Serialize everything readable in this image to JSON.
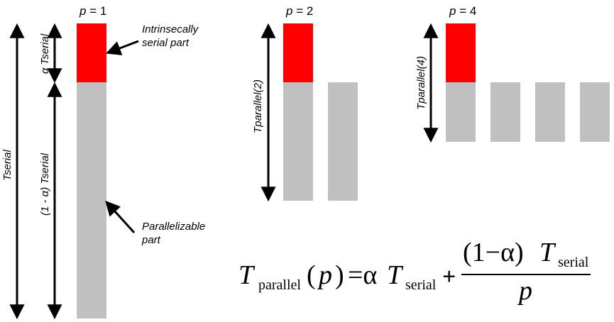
{
  "panels": {
    "p1": {
      "title_var": "p",
      "title_rest": " = 1"
    },
    "p2": {
      "title_var": "p",
      "title_rest": " = 2"
    },
    "p4": {
      "title_var": "p",
      "title_rest": " = 4"
    }
  },
  "labels": {
    "tserial": "Tserial",
    "alpha_tserial": "α Tserial",
    "one_minus_alpha_tserial": "(1  -  α) Tserial",
    "tparallel_2": "Tparallel(2)",
    "tparallel_4": "Tparallel(4)",
    "serial_part_line1": "Intrinsecally",
    "serial_part_line2": "serial part",
    "parallel_part_line1": "Parallelizable",
    "parallel_part_line2": "part"
  },
  "formula": {
    "T": "T",
    "sub_parallel": "parallel",
    "open": "(",
    "p": "p",
    "close": ")",
    "eq": "=α",
    "T2": "T",
    "sub_serial": "serial",
    "plus": "+",
    "num_left": "(1−α)",
    "T3": "T",
    "sub_serial2": "serial",
    "den": "p"
  },
  "colors": {
    "serial": "#ff0000",
    "parallel": "#c0c0c0",
    "ink": "#000000"
  }
}
